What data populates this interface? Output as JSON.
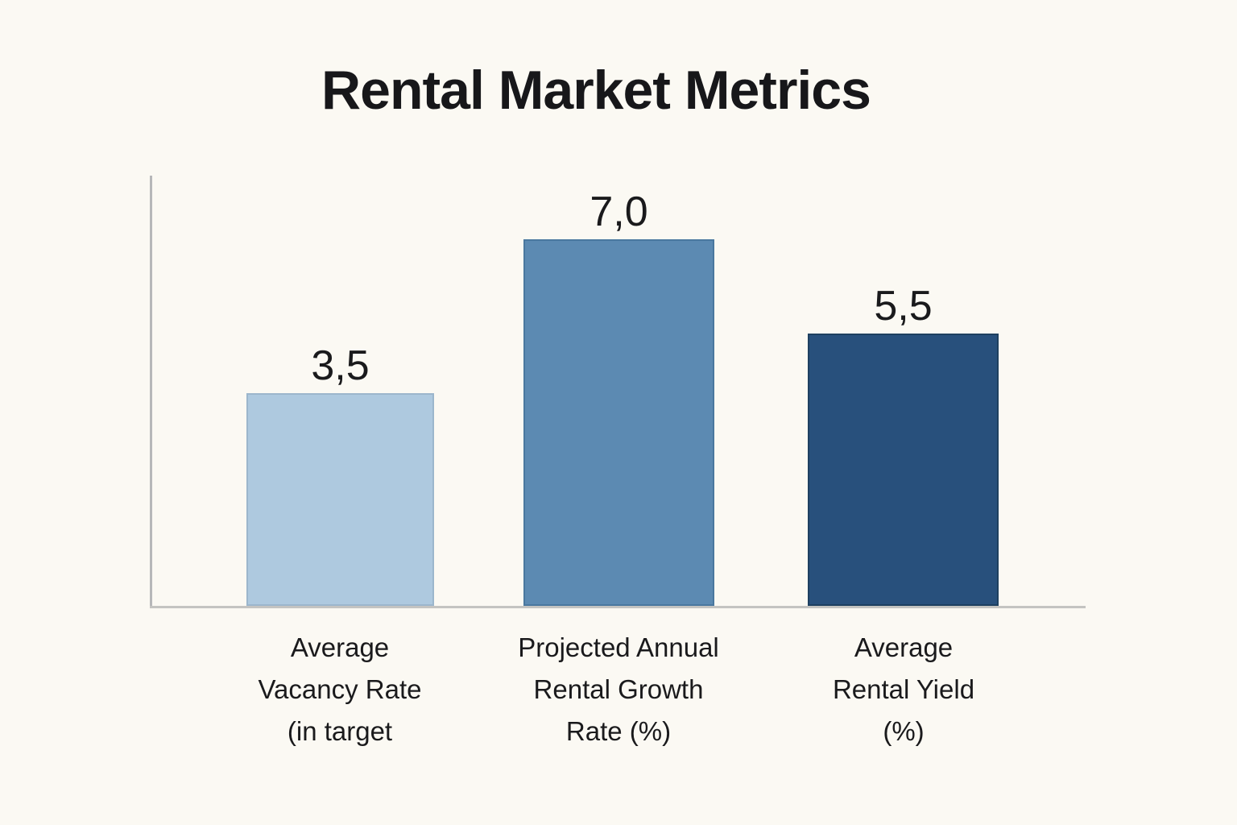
{
  "page": {
    "background": "#fbf9f3",
    "text_color": "#1a1a1c"
  },
  "chart_data": {
    "type": "bar",
    "title": "Rental Market Metrics",
    "xlabel": "",
    "ylabel": "",
    "ylim": [
      0,
      7.5
    ],
    "grid": false,
    "legend": false,
    "axis_color": "#c4c4c1",
    "value_decimal_separator": "comma",
    "categories": [
      "Average Vacancy Rate (in target",
      "Projected Annual Rental Growth Rate (%)",
      "Average Rental Yield (%)"
    ],
    "values": [
      3.5,
      7.0,
      5.5
    ],
    "bars": [
      {
        "label_display": "Average\nVacancy Rate\n(in target",
        "value": 3.5,
        "display_value": "3,5",
        "color": "#aec9df",
        "border_color": "#9cb6cc"
      },
      {
        "label_display": "Projected Annual\nRental Growth\nRate (%)",
        "value": 7.0,
        "display_value": "7,0",
        "color": "#5c8ab2",
        "border_color": "#4a789f"
      },
      {
        "label_display": "Average\nRental Yield\n(%)",
        "value": 5.5,
        "display_value": "5,5",
        "color": "#28507c",
        "border_color": "#1e4060"
      }
    ]
  }
}
